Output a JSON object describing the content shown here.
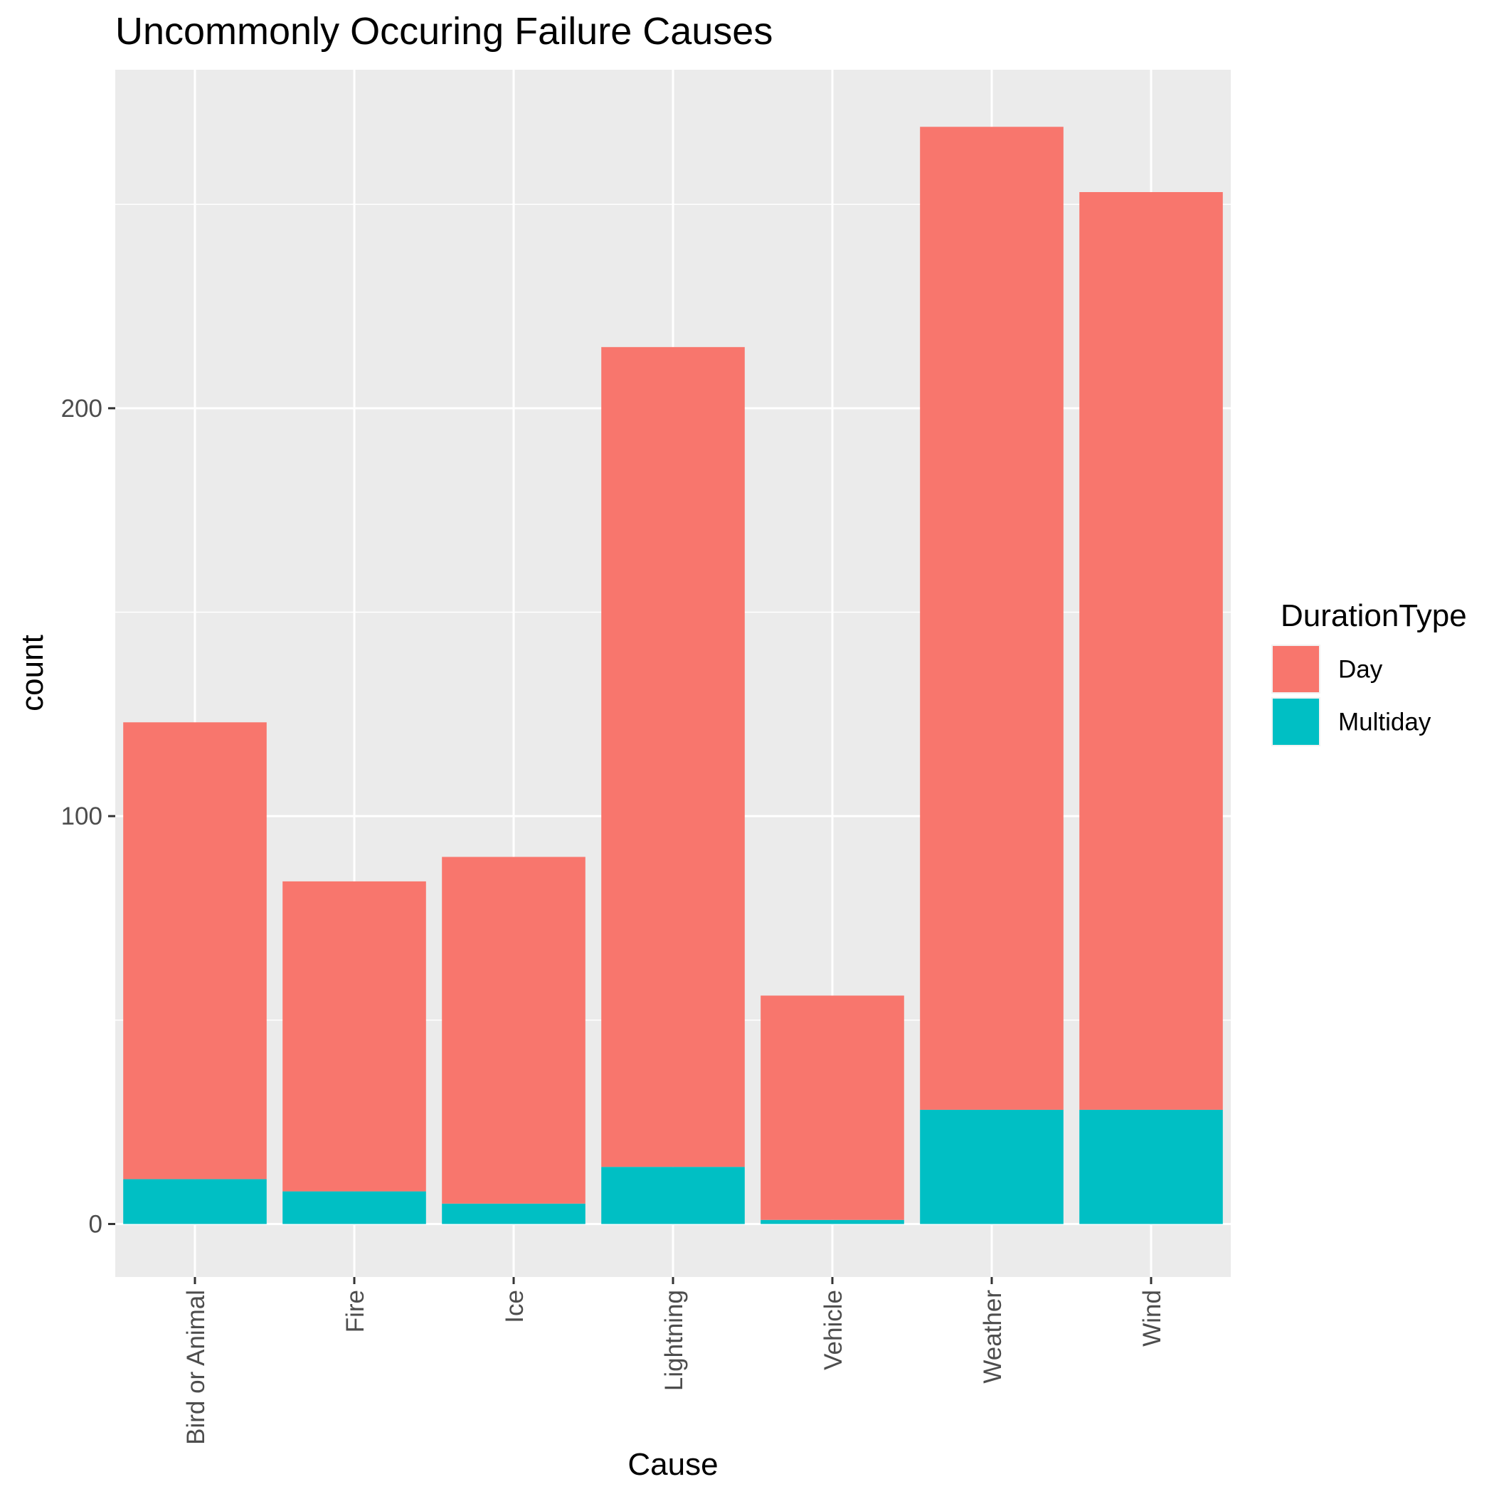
{
  "chart_data": {
    "type": "bar",
    "stacked": true,
    "title": "Uncommonly Occuring Failure Causes",
    "xlabel": "Cause",
    "ylabel": "count",
    "categories": [
      "Bird or Animal",
      "Fire",
      "Ice",
      "Lightning",
      "Vehicle",
      "Weather",
      "Wind"
    ],
    "series": [
      {
        "name": "Day",
        "color": "#F8766D",
        "values": [
          112,
          76,
          85,
          201,
          55,
          241,
          225
        ]
      },
      {
        "name": "Multiday",
        "color": "#00BFC4",
        "values": [
          11,
          8,
          5,
          14,
          1,
          28,
          28
        ]
      }
    ],
    "ylim": [
      -13,
      283
    ],
    "yticks": [
      0,
      100,
      200
    ],
    "y_minor_ticks": [
      50,
      150,
      250
    ],
    "grid": true,
    "legend": {
      "title": "DurationType",
      "position": "right"
    },
    "panel_color": "#EBEBEB"
  }
}
